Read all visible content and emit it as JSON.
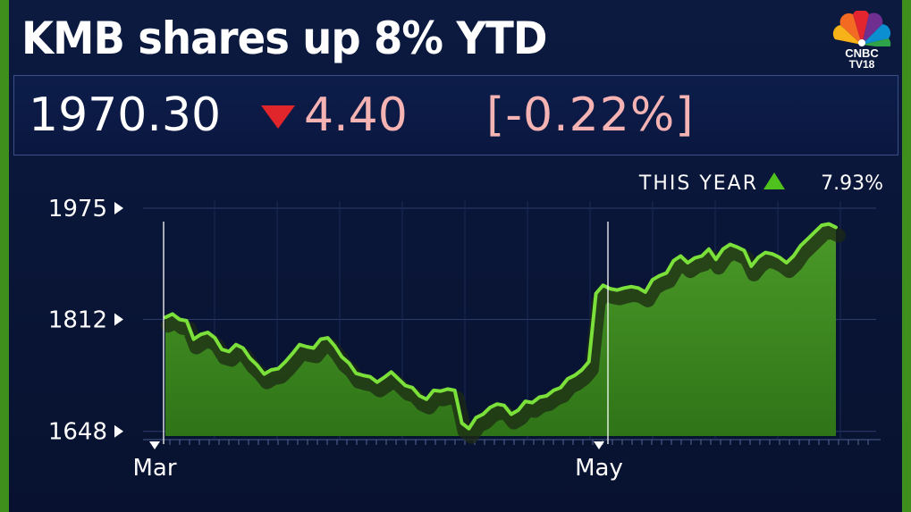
{
  "headline": "KMB shares up 8% YTD",
  "logo": {
    "line1": "CNBC",
    "line2": "TV18"
  },
  "ticker": {
    "price": "1970.30",
    "change": "4.40",
    "change_pct": "[-0.22%]",
    "direction": "down",
    "down_color": "#e0262a"
  },
  "ytd": {
    "label": "THIS YEAR",
    "value": "7.93%",
    "direction": "up"
  },
  "chart_data": {
    "type": "area",
    "title": "",
    "xlabel": "",
    "ylabel": "",
    "x_ticks": [
      "Mar",
      "May"
    ],
    "y_ticks": [
      1975,
      1812,
      1648
    ],
    "ylim": [
      1645,
      1975
    ],
    "grid": true,
    "series": [
      {
        "values": [
          1815,
          1820,
          1812,
          1810,
          1783,
          1790,
          1793,
          1785,
          1768,
          1765,
          1775,
          1770,
          1755,
          1745,
          1732,
          1738,
          1740,
          1750,
          1762,
          1775,
          1772,
          1770,
          1783,
          1785,
          1773,
          1757,
          1748,
          1733,
          1730,
          1728,
          1720,
          1727,
          1735,
          1725,
          1715,
          1712,
          1700,
          1695,
          1708,
          1707,
          1710,
          1708,
          1660,
          1652,
          1668,
          1673,
          1683,
          1688,
          1686,
          1673,
          1679,
          1692,
          1690,
          1698,
          1700,
          1708,
          1712,
          1725,
          1730,
          1738,
          1750,
          1850,
          1862,
          1857,
          1855,
          1858,
          1860,
          1858,
          1852,
          1870,
          1876,
          1880,
          1898,
          1905,
          1895,
          1902,
          1905,
          1915,
          1900,
          1915,
          1922,
          1918,
          1913,
          1890,
          1903,
          1910,
          1908,
          1903,
          1895,
          1905,
          1920,
          1930,
          1940,
          1950,
          1952,
          1947
        ],
        "color": "#4ea020"
      }
    ]
  },
  "colors": {
    "background": "#0a1638",
    "frame_border": "#3f8f1c",
    "line": "#7be03a",
    "area": "#3e8a22",
    "up": "#4fc21e"
  }
}
